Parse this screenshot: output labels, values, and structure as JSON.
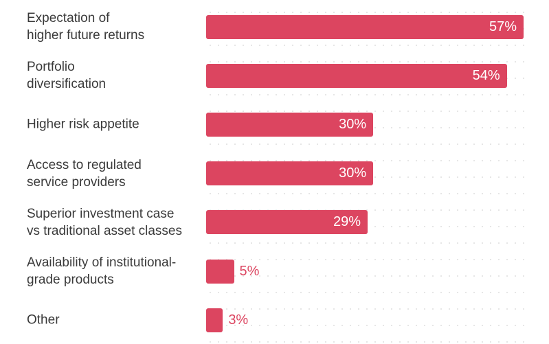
{
  "chart_data": {
    "type": "bar",
    "orientation": "horizontal",
    "color": "#dc4560",
    "categories": [
      "Expectation of\nhigher future returns",
      "Portfolio\ndiversification",
      "Higher risk appetite",
      "Access to regulated\nservice providers",
      "Superior investment case\nvs traditional asset classes",
      "Availability of institutional-\ngrade products",
      "Other"
    ],
    "values": [
      57,
      54,
      30,
      30,
      29,
      5,
      3
    ],
    "value_labels": [
      "57%",
      "54%",
      "30%",
      "30%",
      "29%",
      "5%",
      "3%"
    ]
  }
}
